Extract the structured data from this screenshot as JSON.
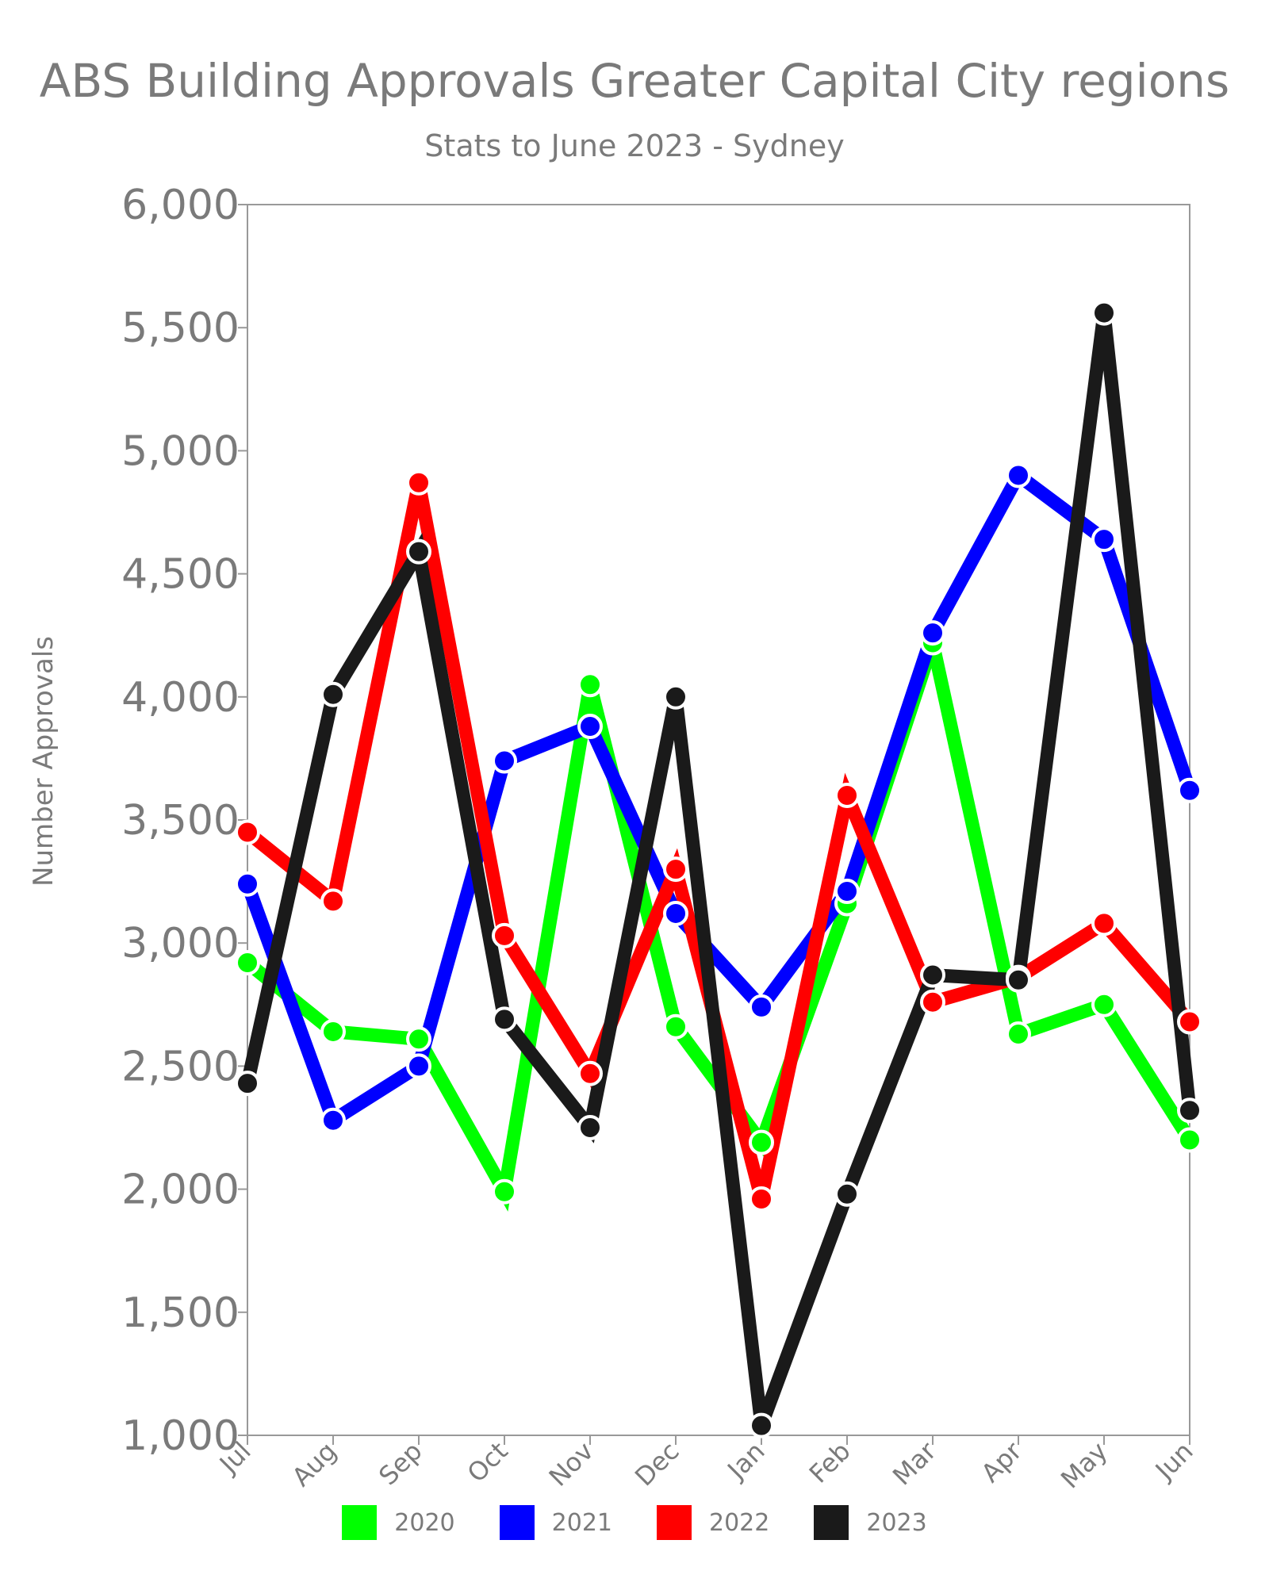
{
  "chart_data": {
    "type": "line",
    "title": "ABS Building Approvals Greater Capital City regions",
    "subtitle": "Stats to June 2023 - Sydney",
    "xlabel": "",
    "ylabel": "Number Approvals",
    "ylim": [
      1000,
      6000
    ],
    "yticks": [
      1000,
      1500,
      2000,
      2500,
      3000,
      3500,
      4000,
      4500,
      5000,
      5500,
      6000
    ],
    "ytick_labels": [
      "1,000",
      "1,500",
      "2,000",
      "2,500",
      "3,000",
      "3,500",
      "4,000",
      "4,500",
      "5,000",
      "5,500",
      "6,000"
    ],
    "categories": [
      "Jul",
      "Aug",
      "Sep",
      "Oct",
      "Nov",
      "Dec",
      "Jan",
      "Feb",
      "Mar",
      "Apr",
      "May",
      "Jun"
    ],
    "grid": false,
    "legend_position": "bottom",
    "series": [
      {
        "name": "2020",
        "color": "#00ff00",
        "values": [
          2920,
          2640,
          2610,
          1990,
          4050,
          2660,
          2190,
          3160,
          4220,
          2630,
          2750,
          2200
        ]
      },
      {
        "name": "2021",
        "color": "#0000ff",
        "values": [
          3240,
          2280,
          2500,
          3740,
          3880,
          3120,
          2740,
          3210,
          4260,
          4900,
          4640,
          3620
        ]
      },
      {
        "name": "2022",
        "color": "#ff0000",
        "values": [
          3450,
          3170,
          4870,
          3030,
          2470,
          3300,
          1960,
          3600,
          2760,
          2860,
          3080,
          2680
        ]
      },
      {
        "name": "2023",
        "color": "#1a1a1a",
        "values": [
          2430,
          4010,
          4590,
          2690,
          2250,
          4000,
          1040,
          1980,
          2870,
          2850,
          5560,
          2320
        ]
      }
    ]
  }
}
